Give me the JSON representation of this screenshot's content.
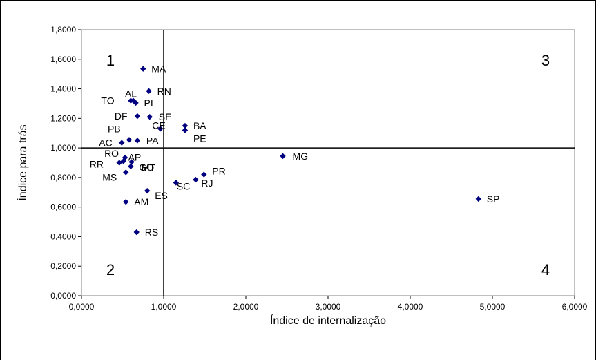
{
  "chart_data": {
    "type": "scatter",
    "xlabel": "Índice de internalização",
    "ylabel": "Índice para trás",
    "xlim": [
      0,
      6
    ],
    "ylim": [
      0,
      1.8
    ],
    "x_ticks": [
      "0,0000",
      "1,0000",
      "2,0000",
      "3,0000",
      "4,0000",
      "5,0000",
      "6,0000"
    ],
    "y_ticks": [
      "0,0000",
      "0,2000",
      "0,4000",
      "0,6000",
      "0,8000",
      "1,0000",
      "1,2000",
      "1,4000",
      "1,6000",
      "1,8000"
    ],
    "reference_lines": {
      "x": 1.0,
      "y": 1.0
    },
    "marker_color": "#000080",
    "grid": false,
    "quadrant_labels": [
      {
        "text": "1",
        "position": "top-left"
      },
      {
        "text": "2",
        "position": "bottom-left"
      },
      {
        "text": "3",
        "position": "top-right"
      },
      {
        "text": "4",
        "position": "bottom-right"
      }
    ],
    "points": [
      {
        "label": "MA",
        "x": 0.75,
        "y": 1.535
      },
      {
        "label": "AL",
        "x": 0.63,
        "y": 1.32
      },
      {
        "label": "RN",
        "x": 0.82,
        "y": 1.385
      },
      {
        "label": "TO",
        "x": 0.6,
        "y": 1.32
      },
      {
        "label": "PI",
        "x": 0.66,
        "y": 1.305
      },
      {
        "label": "DF",
        "x": 0.68,
        "y": 1.215
      },
      {
        "label": "SE",
        "x": 0.83,
        "y": 1.21
      },
      {
        "label": "CE",
        "x": 0.96,
        "y": 1.13
      },
      {
        "label": "BA",
        "x": 1.26,
        "y": 1.15
      },
      {
        "label": "PE",
        "x": 1.26,
        "y": 1.12
      },
      {
        "label": "PB",
        "x": 0.58,
        "y": 1.055
      },
      {
        "label": "PA",
        "x": 0.68,
        "y": 1.05
      },
      {
        "label": "AC",
        "x": 0.49,
        "y": 1.035
      },
      {
        "label": "MG",
        "x": 2.45,
        "y": 0.945
      },
      {
        "label": "RO",
        "x": 0.53,
        "y": 0.935
      },
      {
        "label": "AP",
        "x": 0.61,
        "y": 0.905
      },
      {
        "label": "RR",
        "x": 0.46,
        "y": 0.9
      },
      {
        "label": "GO",
        "x": 0.6,
        "y": 0.875
      },
      {
        "label": "MS",
        "x": 0.54,
        "y": 0.835
      },
      {
        "label": "MT",
        "x": 0.51,
        "y": 0.91
      },
      {
        "label": "PR",
        "x": 1.49,
        "y": 0.82
      },
      {
        "label": "RJ",
        "x": 1.39,
        "y": 0.785
      },
      {
        "label": "SC",
        "x": 1.15,
        "y": 0.765
      },
      {
        "label": "ES",
        "x": 0.8,
        "y": 0.71
      },
      {
        "label": "AM",
        "x": 0.54,
        "y": 0.635
      },
      {
        "label": "SP",
        "x": 4.83,
        "y": 0.655
      },
      {
        "label": "RS",
        "x": 0.67,
        "y": 0.43
      }
    ]
  }
}
